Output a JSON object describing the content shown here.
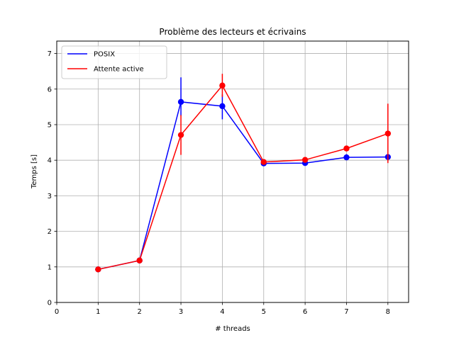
{
  "chart_data": {
    "type": "line",
    "title": "Problème des lecteurs et écrivains",
    "xlabel": "# threads",
    "ylabel": "Temps [s]",
    "xlim": [
      0,
      8.5
    ],
    "ylim": [
      0,
      7.35
    ],
    "xticks": [
      0,
      1,
      2,
      3,
      4,
      5,
      6,
      7,
      8
    ],
    "yticks": [
      0,
      1,
      2,
      3,
      4,
      5,
      6,
      7
    ],
    "grid": true,
    "legend_position": "top-left",
    "x": [
      1,
      2,
      3,
      4,
      5,
      6,
      7,
      8
    ],
    "series": [
      {
        "name": "POSIX",
        "color": "#0000ff",
        "values": [
          0.93,
          1.18,
          5.64,
          5.52,
          3.91,
          3.92,
          4.08,
          4.09
        ],
        "err_low": [
          0.93,
          1.18,
          5.25,
          5.15,
          3.88,
          3.89,
          4.0,
          4.03
        ],
        "err_high": [
          0.93,
          1.18,
          6.33,
          5.85,
          3.94,
          3.95,
          4.17,
          4.15
        ]
      },
      {
        "name": "Attente active",
        "color": "#ff0000",
        "values": [
          0.93,
          1.18,
          4.71,
          6.1,
          3.95,
          4.01,
          4.33,
          4.75
        ],
        "err_low": [
          0.93,
          1.18,
          4.15,
          5.78,
          3.92,
          3.96,
          4.26,
          3.92
        ],
        "err_high": [
          0.93,
          1.18,
          5.27,
          6.43,
          3.98,
          4.06,
          4.4,
          5.59
        ]
      }
    ]
  }
}
